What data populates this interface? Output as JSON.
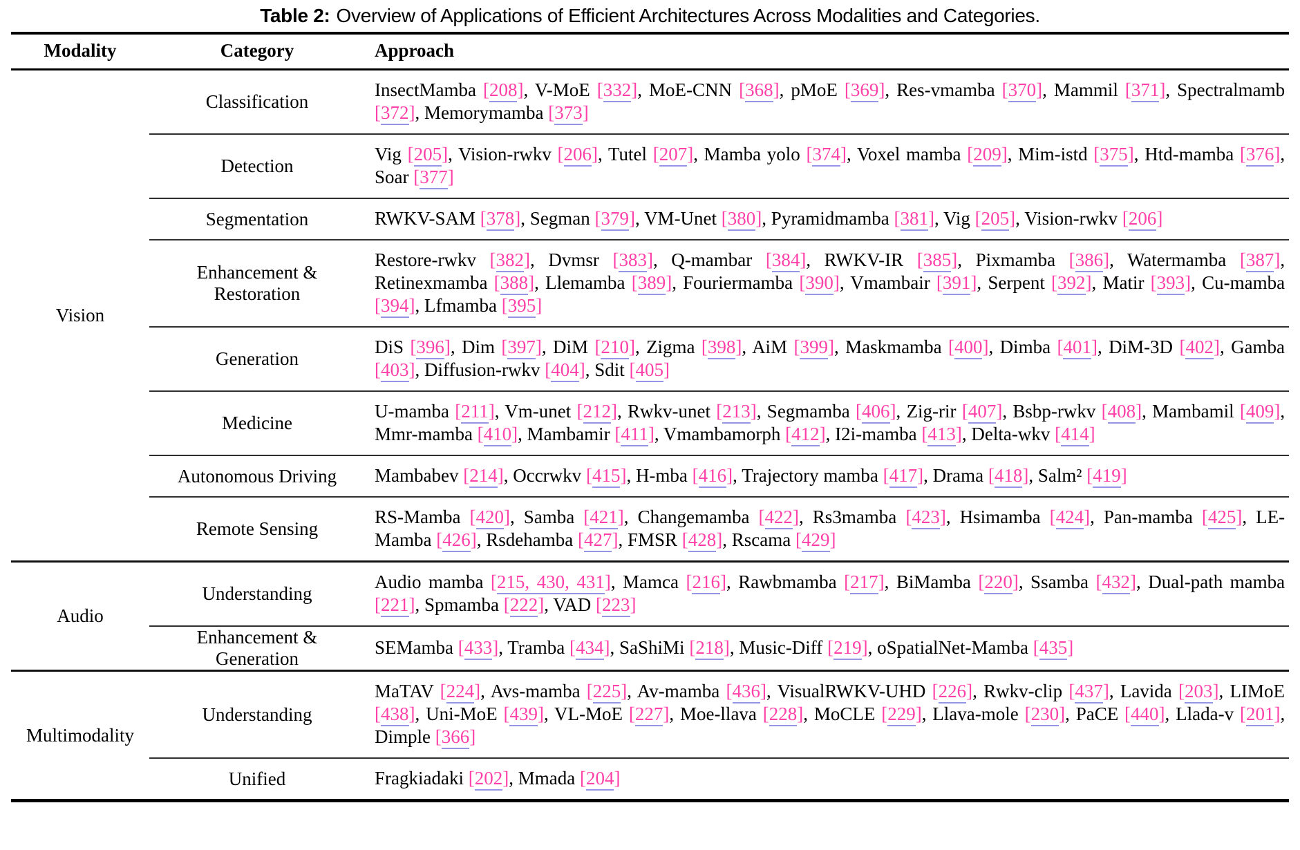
{
  "caption": {
    "label": "Table 2:",
    "title": "Overview of Applications of Efficient Architectures Across Modalities and Categories."
  },
  "columns": [
    "Modality",
    "Category",
    "Approach"
  ],
  "colors": {
    "citation": "#ff40a8",
    "citation_underline": "#9595e6",
    "text": "#000000",
    "rule": "#000000"
  },
  "groups": [
    {
      "modality": "Vision",
      "categories": [
        {
          "label": "Classification",
          "approaches": [
            {
              "name": "InsectMamba",
              "refs": "208"
            },
            {
              "name": "V-MoE",
              "refs": "332"
            },
            {
              "name": "MoE-CNN",
              "refs": "368"
            },
            {
              "name": "pMoE",
              "refs": "369"
            },
            {
              "name": "Res-vmamba",
              "refs": "370"
            },
            {
              "name": "Mammil",
              "refs": "371"
            },
            {
              "name": "Spectralmamb",
              "refs": "372"
            },
            {
              "name": "Memorymamba",
              "refs": "373"
            }
          ]
        },
        {
          "label": "Detection",
          "approaches": [
            {
              "name": "Vig",
              "refs": "205"
            },
            {
              "name": "Vision-rwkv",
              "refs": "206"
            },
            {
              "name": "Tutel",
              "refs": "207"
            },
            {
              "name": "Mamba yolo",
              "refs": "374"
            },
            {
              "name": "Voxel mamba",
              "refs": "209"
            },
            {
              "name": "Mim-istd",
              "refs": "375"
            },
            {
              "name": "Htd-mamba",
              "refs": "376"
            },
            {
              "name": "Soar",
              "refs": "377"
            }
          ]
        },
        {
          "label": "Segmentation",
          "approaches": [
            {
              "name": "RWKV-SAM",
              "refs": "378"
            },
            {
              "name": "Segman",
              "refs": "379"
            },
            {
              "name": "VM-Unet",
              "refs": "380"
            },
            {
              "name": "Pyramidmamba",
              "refs": "381"
            },
            {
              "name": "Vig",
              "refs": "205"
            },
            {
              "name": "Vision-rwkv",
              "refs": "206"
            }
          ]
        },
        {
          "label": "Enhancement & Restoration",
          "approaches": [
            {
              "name": "Restore-rwkv",
              "refs": "382"
            },
            {
              "name": "Dvmsr",
              "refs": "383"
            },
            {
              "name": "Q-mambar",
              "refs": "384"
            },
            {
              "name": "RWKV-IR",
              "refs": "385"
            },
            {
              "name": "Pixmamba",
              "refs": "386"
            },
            {
              "name": "Watermamba",
              "refs": "387"
            },
            {
              "name": "Retinexmamba",
              "refs": "388"
            },
            {
              "name": "Llemamba",
              "refs": "389"
            },
            {
              "name": "Fouriermamba",
              "refs": "390"
            },
            {
              "name": "Vmambair",
              "refs": "391"
            },
            {
              "name": "Serpent",
              "refs": "392"
            },
            {
              "name": "Matir",
              "refs": "393"
            },
            {
              "name": "Cu-mamba",
              "refs": "394"
            },
            {
              "name": "Lfmamba",
              "refs": "395"
            }
          ]
        },
        {
          "label": "Generation",
          "approaches": [
            {
              "name": "DiS",
              "refs": "396"
            },
            {
              "name": "Dim",
              "refs": "397"
            },
            {
              "name": "DiM",
              "refs": "210"
            },
            {
              "name": "Zigma",
              "refs": "398"
            },
            {
              "name": "AiM",
              "refs": "399"
            },
            {
              "name": "Maskmamba",
              "refs": "400"
            },
            {
              "name": "Dimba",
              "refs": "401"
            },
            {
              "name": "DiM-3D",
              "refs": "402"
            },
            {
              "name": "Gamba",
              "refs": "403"
            },
            {
              "name": "Diffusion-rwkv",
              "refs": "404"
            },
            {
              "name": "Sdit",
              "refs": "405"
            }
          ]
        },
        {
          "label": "Medicine",
          "approaches": [
            {
              "name": "U-mamba",
              "refs": "211"
            },
            {
              "name": "Vm-unet",
              "refs": "212"
            },
            {
              "name": "Rwkv-unet",
              "refs": "213"
            },
            {
              "name": "Segmamba",
              "refs": "406"
            },
            {
              "name": "Zig-rir",
              "refs": "407"
            },
            {
              "name": "Bsbp-rwkv",
              "refs": "408"
            },
            {
              "name": "Mambamil",
              "refs": "409"
            },
            {
              "name": "Mmr-mamba",
              "refs": "410"
            },
            {
              "name": "Mambamir",
              "refs": "411"
            },
            {
              "name": "Vmambamorph",
              "refs": "412"
            },
            {
              "name": "I2i-mamba",
              "refs": "413"
            },
            {
              "name": "Delta-wkv",
              "refs": "414"
            }
          ]
        },
        {
          "label": "Autonomous Driving",
          "approaches": [
            {
              "name": "Mambabev",
              "refs": "214"
            },
            {
              "name": "Occrwkv",
              "refs": "415"
            },
            {
              "name": "H-mba",
              "refs": "416"
            },
            {
              "name": "Trajectory mamba",
              "refs": "417"
            },
            {
              "name": "Drama",
              "refs": "418"
            },
            {
              "name": "Salm²",
              "refs": "419"
            }
          ]
        },
        {
          "label": "Remote Sensing",
          "approaches": [
            {
              "name": "RS-Mamba",
              "refs": "420"
            },
            {
              "name": "Samba",
              "refs": "421"
            },
            {
              "name": "Changemamba",
              "refs": "422"
            },
            {
              "name": "Rs3mamba",
              "refs": "423"
            },
            {
              "name": "Hsimamba",
              "refs": "424"
            },
            {
              "name": "Pan-mamba",
              "refs": "425"
            },
            {
              "name": "LE-Mamba",
              "refs": "426"
            },
            {
              "name": "Rsdehamba",
              "refs": "427"
            },
            {
              "name": "FMSR",
              "refs": "428"
            },
            {
              "name": "Rscama",
              "refs": "429"
            }
          ]
        }
      ]
    },
    {
      "modality": "Audio",
      "categories": [
        {
          "label": "Understanding",
          "approaches": [
            {
              "name": "Audio mamba",
              "refs": "215, 430, 431"
            },
            {
              "name": "Mamca",
              "refs": "216"
            },
            {
              "name": "Rawbmamba",
              "refs": "217"
            },
            {
              "name": "BiMamba",
              "refs": "220"
            },
            {
              "name": "Ssamba",
              "refs": "432"
            },
            {
              "name": "Dual-path mamba",
              "refs": "221"
            },
            {
              "name": "Spmamba",
              "refs": "222"
            },
            {
              "name": "VAD",
              "refs": "223"
            }
          ]
        },
        {
          "label": "Enhancement & Generation",
          "approaches": [
            {
              "name": "SEMamba",
              "refs": "433"
            },
            {
              "name": "Tramba",
              "refs": "434"
            },
            {
              "name": "SaShiMi",
              "refs": "218"
            },
            {
              "name": "Music-Diff",
              "refs": "219"
            },
            {
              "name": "oSpatialNet-Mamba",
              "refs": "435"
            }
          ]
        }
      ]
    },
    {
      "modality": "Multimodality",
      "categories": [
        {
          "label": "Understanding",
          "approaches": [
            {
              "name": "MaTAV",
              "refs": "224"
            },
            {
              "name": "Avs-mamba",
              "refs": "225"
            },
            {
              "name": "Av-mamba",
              "refs": "436"
            },
            {
              "name": "VisualRWKV-UHD",
              "refs": "226"
            },
            {
              "name": "Rwkv-clip",
              "refs": "437"
            },
            {
              "name": "Lavida",
              "refs": "203"
            },
            {
              "name": "LIMoE",
              "refs": "438"
            },
            {
              "name": "Uni-MoE",
              "refs": "439"
            },
            {
              "name": "VL-MoE",
              "refs": "227"
            },
            {
              "name": "Moe-llava",
              "refs": "228"
            },
            {
              "name": "MoCLE",
              "refs": "229"
            },
            {
              "name": "Llava-mole",
              "refs": "230"
            },
            {
              "name": "PaCE",
              "refs": "440"
            },
            {
              "name": "Llada-v",
              "refs": "201"
            },
            {
              "name": "Dimple",
              "refs": "366"
            }
          ]
        },
        {
          "label": "Unified",
          "approaches": [
            {
              "name": "Fragkiadaki",
              "refs": "202"
            },
            {
              "name": "Mmada",
              "refs": "204"
            }
          ]
        }
      ]
    }
  ]
}
